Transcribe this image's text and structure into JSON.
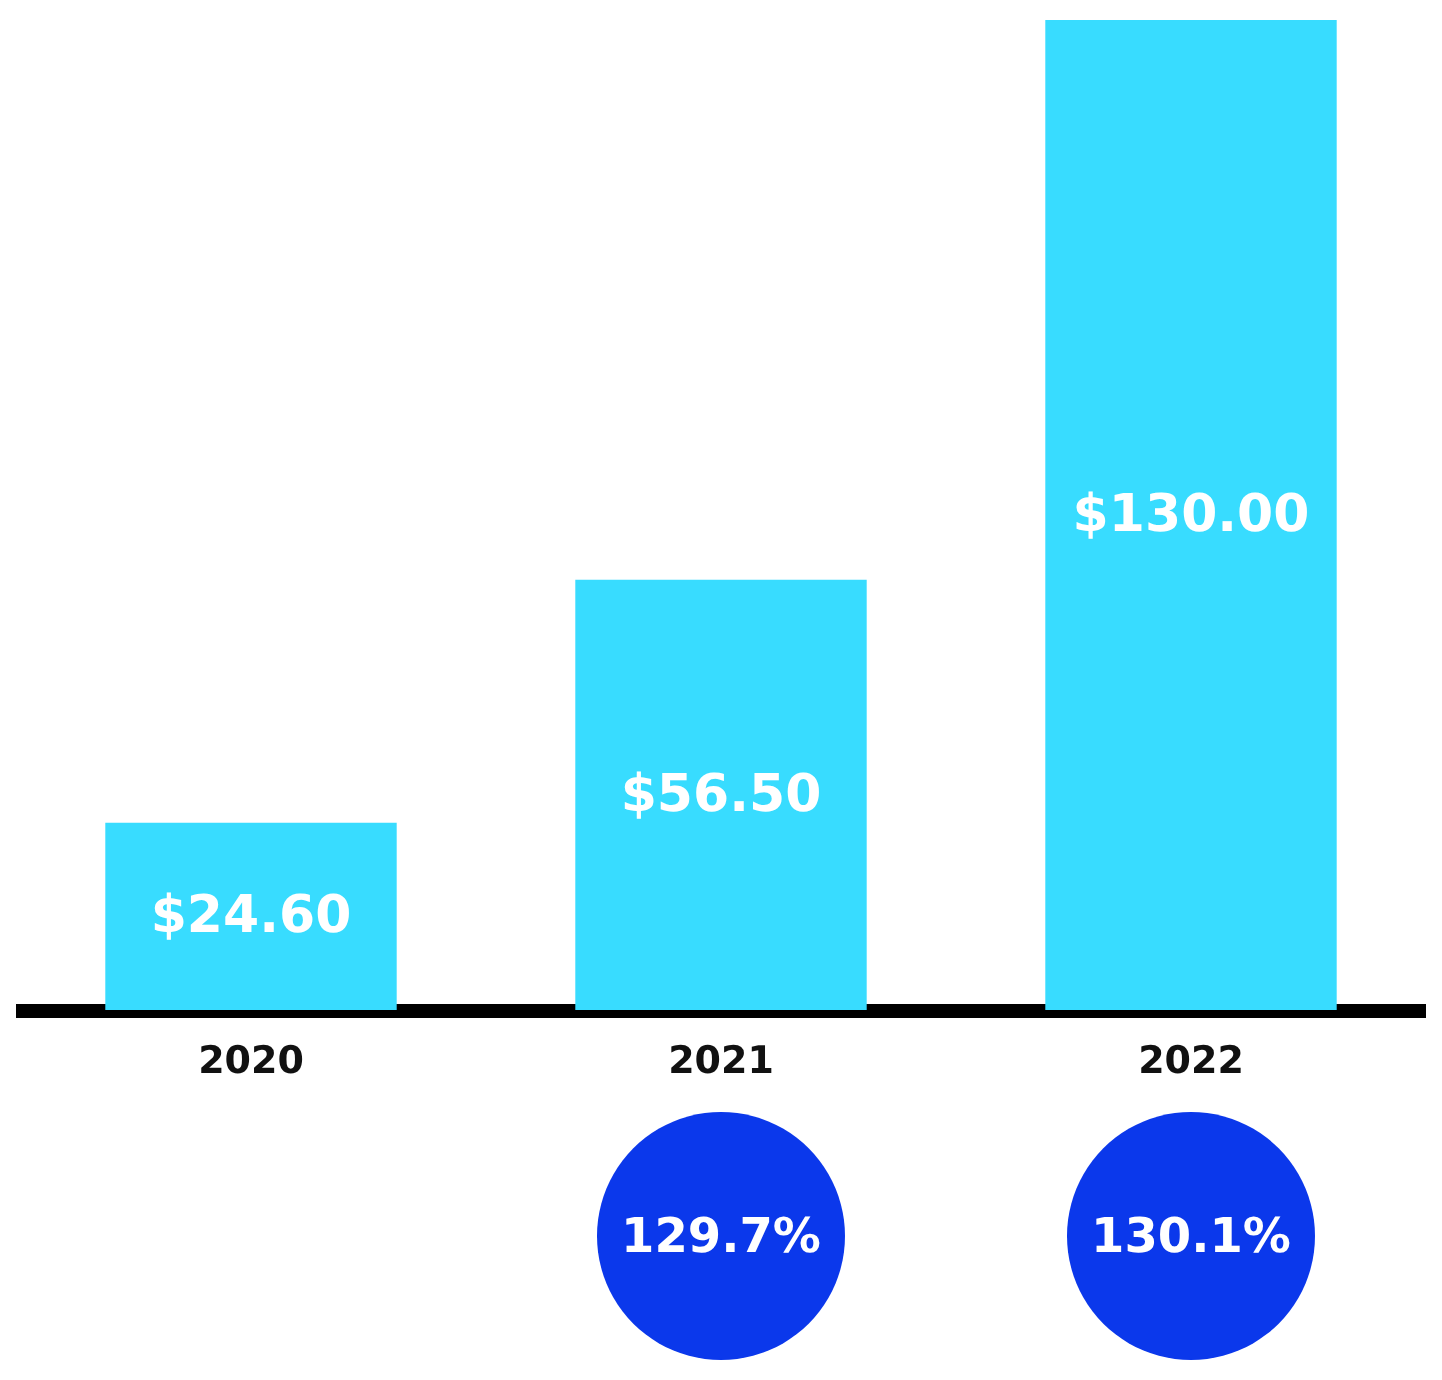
{
  "chart_data": {
    "type": "bar",
    "categories": [
      "2020",
      "2021",
      "2022"
    ],
    "values": [
      24.6,
      56.5,
      130.0
    ],
    "color": "#38dcff",
    "value_labels": [
      "$24.60",
      "$56.50",
      "$130.00"
    ],
    "annotations": [
      "129.7%",
      "130.1%"
    ]
  }
}
